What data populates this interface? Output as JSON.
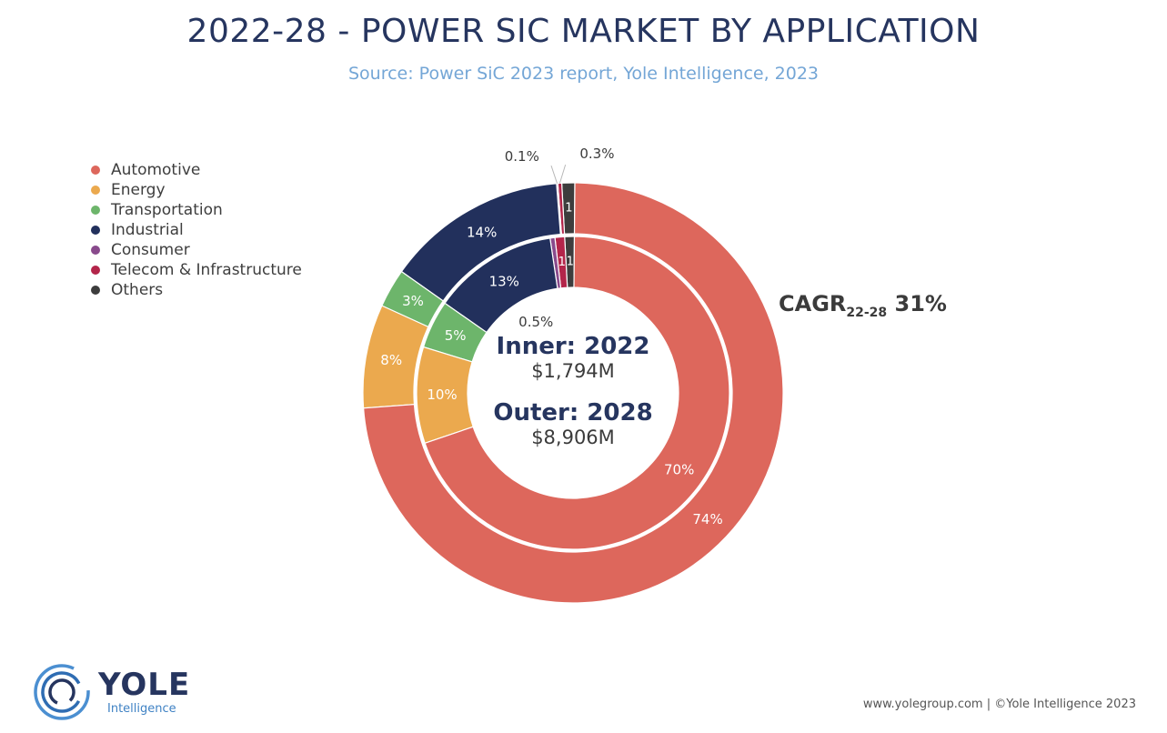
{
  "header": {
    "title": "2022-28 - POWER SIC MARKET BY APPLICATION",
    "subtitle": "Source: Power SiC 2023 report, Yole Intelligence, 2023"
  },
  "legend": [
    {
      "label": "Automotive",
      "color": "#dd675c"
    },
    {
      "label": "Energy",
      "color": "#eba94e"
    },
    {
      "label": "Transportation",
      "color": "#6db56b"
    },
    {
      "label": "Industrial",
      "color": "#22305c"
    },
    {
      "label": "Consumer",
      "color": "#894a8c"
    },
    {
      "label": "Telecom & Infrastructure",
      "color": "#b3254a"
    },
    {
      "label": "Others",
      "color": "#3d3d3d"
    }
  ],
  "center": {
    "inner_label": "Inner: 2022",
    "inner_value": "$1,794M",
    "outer_label": "Outer: 2028",
    "outer_value": "$8,906M"
  },
  "cagr": {
    "main": "CAGR",
    "sub": "22-28",
    "value": "31%"
  },
  "chart_data": {
    "type": "pie",
    "variant": "nested-donut",
    "rings": [
      {
        "name": "Inner: 2022",
        "segments": [
          {
            "category": "Automotive",
            "value": 70,
            "label": "70%"
          },
          {
            "category": "Energy",
            "value": 10,
            "label": "10%"
          },
          {
            "category": "Transportation",
            "value": 5,
            "label": "5%"
          },
          {
            "category": "Industrial",
            "value": 13,
            "label": "13%"
          },
          {
            "category": "Consumer",
            "value": 0.5,
            "label": "0.5%"
          },
          {
            "category": "Telecom & Infrastructure",
            "value": 1,
            "label": "1"
          },
          {
            "category": "Others",
            "value": 1,
            "label": "1"
          }
        ]
      },
      {
        "name": "Outer: 2028",
        "segments": [
          {
            "category": "Automotive",
            "value": 74,
            "label": "74%"
          },
          {
            "category": "Energy",
            "value": 8,
            "label": "8%"
          },
          {
            "category": "Transportation",
            "value": 3,
            "label": "3%"
          },
          {
            "category": "Industrial",
            "value": 14,
            "label": "14%"
          },
          {
            "category": "Consumer",
            "value": 0.1,
            "label": "0.1%"
          },
          {
            "category": "Telecom & Infrastructure",
            "value": 0.3,
            "label": "0.3%"
          },
          {
            "category": "Others",
            "value": 1,
            "label": "1"
          }
        ]
      }
    ],
    "legend_position": "left"
  },
  "brand": {
    "name": "YOLE",
    "sub": "Intelligence"
  },
  "footer": "www.yolegroup.com | ©Yole Intelligence 2023"
}
